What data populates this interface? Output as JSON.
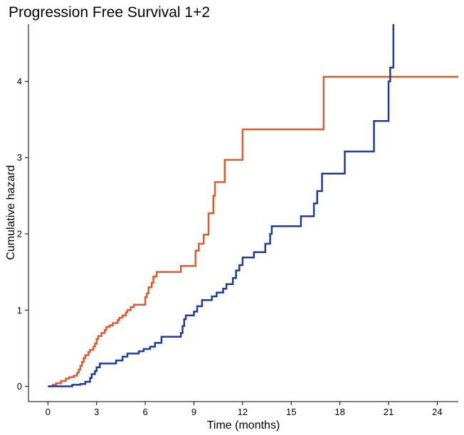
{
  "chart_data": {
    "type": "line",
    "step": true,
    "title": "Progression Free Survival 1+2",
    "xlabel": "Time (months)",
    "ylabel": "Cumulative hazard",
    "xlim": [
      -1.2,
      25.3
    ],
    "ylim": [
      -0.2,
      4.75
    ],
    "xticks": [
      0,
      3,
      6,
      9,
      12,
      15,
      18,
      21,
      24
    ],
    "yticks": [
      0,
      1,
      2,
      3,
      4
    ],
    "grid": false,
    "legend": "none",
    "series": [
      {
        "color": "#E05A2B",
        "points": [
          [
            0,
            0
          ],
          [
            0.3,
            0.02
          ],
          [
            0.5,
            0.04
          ],
          [
            0.8,
            0.07
          ],
          [
            1.1,
            0.1
          ],
          [
            1.3,
            0.12
          ],
          [
            1.6,
            0.14
          ],
          [
            1.8,
            0.18
          ],
          [
            1.9,
            0.22
          ],
          [
            2.0,
            0.27
          ],
          [
            2.1,
            0.32
          ],
          [
            2.2,
            0.37
          ],
          [
            2.3,
            0.41
          ],
          [
            2.5,
            0.45
          ],
          [
            2.6,
            0.48
          ],
          [
            2.8,
            0.52
          ],
          [
            2.9,
            0.56
          ],
          [
            3.0,
            0.62
          ],
          [
            3.1,
            0.66
          ],
          [
            3.3,
            0.7
          ],
          [
            3.5,
            0.74
          ],
          [
            3.6,
            0.78
          ],
          [
            3.8,
            0.8
          ],
          [
            4.0,
            0.83
          ],
          [
            4.3,
            0.87
          ],
          [
            4.4,
            0.9
          ],
          [
            4.6,
            0.93
          ],
          [
            4.8,
            0.97
          ],
          [
            4.9,
            1.0
          ],
          [
            5.1,
            1.04
          ],
          [
            5.3,
            1.07
          ],
          [
            5.8,
            1.07
          ],
          [
            6.0,
            1.17
          ],
          [
            6.1,
            1.22
          ],
          [
            6.2,
            1.3
          ],
          [
            6.4,
            1.36
          ],
          [
            6.5,
            1.44
          ],
          [
            6.7,
            1.5
          ],
          [
            8.2,
            1.58
          ],
          [
            9.1,
            1.78
          ],
          [
            9.3,
            1.87
          ],
          [
            9.6,
            1.99
          ],
          [
            9.9,
            2.27
          ],
          [
            10.2,
            2.5
          ],
          [
            10.3,
            2.68
          ],
          [
            10.9,
            2.97
          ],
          [
            12.0,
            3.37
          ],
          [
            17.0,
            4.06
          ],
          [
            25.3,
            4.06
          ]
        ]
      },
      {
        "color": "#1F3C99",
        "points": [
          [
            0,
            0
          ],
          [
            1.5,
            0.02
          ],
          [
            2.0,
            0.03
          ],
          [
            2.3,
            0.06
          ],
          [
            2.6,
            0.11
          ],
          [
            2.7,
            0.16
          ],
          [
            2.9,
            0.2
          ],
          [
            3.0,
            0.25
          ],
          [
            3.2,
            0.3
          ],
          [
            4.2,
            0.34
          ],
          [
            4.6,
            0.39
          ],
          [
            4.9,
            0.43
          ],
          [
            5.6,
            0.46
          ],
          [
            5.9,
            0.49
          ],
          [
            6.3,
            0.52
          ],
          [
            6.6,
            0.57
          ],
          [
            7.0,
            0.65
          ],
          [
            8.2,
            0.7
          ],
          [
            8.3,
            0.79
          ],
          [
            8.4,
            0.88
          ],
          [
            8.5,
            0.93
          ],
          [
            9.0,
            0.98
          ],
          [
            9.2,
            1.05
          ],
          [
            9.5,
            1.13
          ],
          [
            10.1,
            1.18
          ],
          [
            10.4,
            1.23
          ],
          [
            10.8,
            1.28
          ],
          [
            11.0,
            1.34
          ],
          [
            11.4,
            1.42
          ],
          [
            11.6,
            1.52
          ],
          [
            11.8,
            1.59
          ],
          [
            12.0,
            1.69
          ],
          [
            12.7,
            1.76
          ],
          [
            13.4,
            1.87
          ],
          [
            13.7,
            2.0
          ],
          [
            13.8,
            2.1
          ],
          [
            15.6,
            2.23
          ],
          [
            16.4,
            2.4
          ],
          [
            16.6,
            2.56
          ],
          [
            16.9,
            2.79
          ],
          [
            18.3,
            3.08
          ],
          [
            20.1,
            3.48
          ],
          [
            21.0,
            4.0
          ],
          [
            21.1,
            4.18
          ],
          [
            21.3,
            4.75
          ]
        ]
      }
    ]
  }
}
